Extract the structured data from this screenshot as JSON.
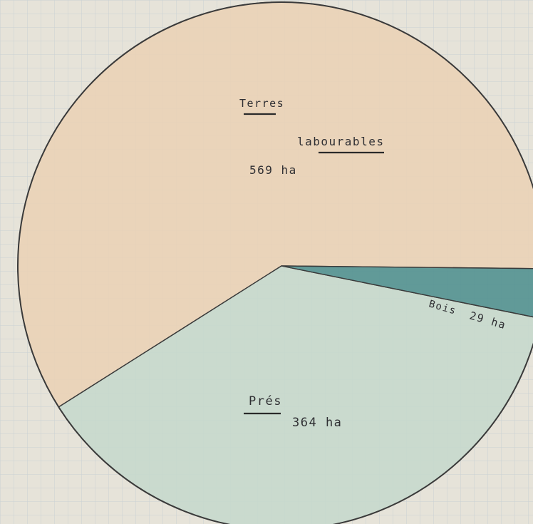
{
  "chart_data": {
    "type": "pie",
    "title": "",
    "start_angle_deg": -0.6,
    "direction": "counter-clockwise",
    "slices": [
      {
        "name": "Terres labourables",
        "label_lines": [
          "Terres",
          "labourables",
          "569 ha"
        ],
        "value": 569,
        "unit": "ha",
        "color": "#ead2b5"
      },
      {
        "name": "Prés",
        "label_lines": [
          "Prés",
          "364 ha"
        ],
        "value": 364,
        "unit": "ha",
        "color": "#c6d8cc"
      },
      {
        "name": "Bois",
        "label_lines": [
          "Bois",
          "29 ha"
        ],
        "value": 29,
        "unit": "ha",
        "color": "#4f8f8e"
      }
    ]
  },
  "colors": {
    "paper": "#e6e3d9",
    "grid": "#c9d2d4",
    "outline": "#3a3a3a"
  }
}
